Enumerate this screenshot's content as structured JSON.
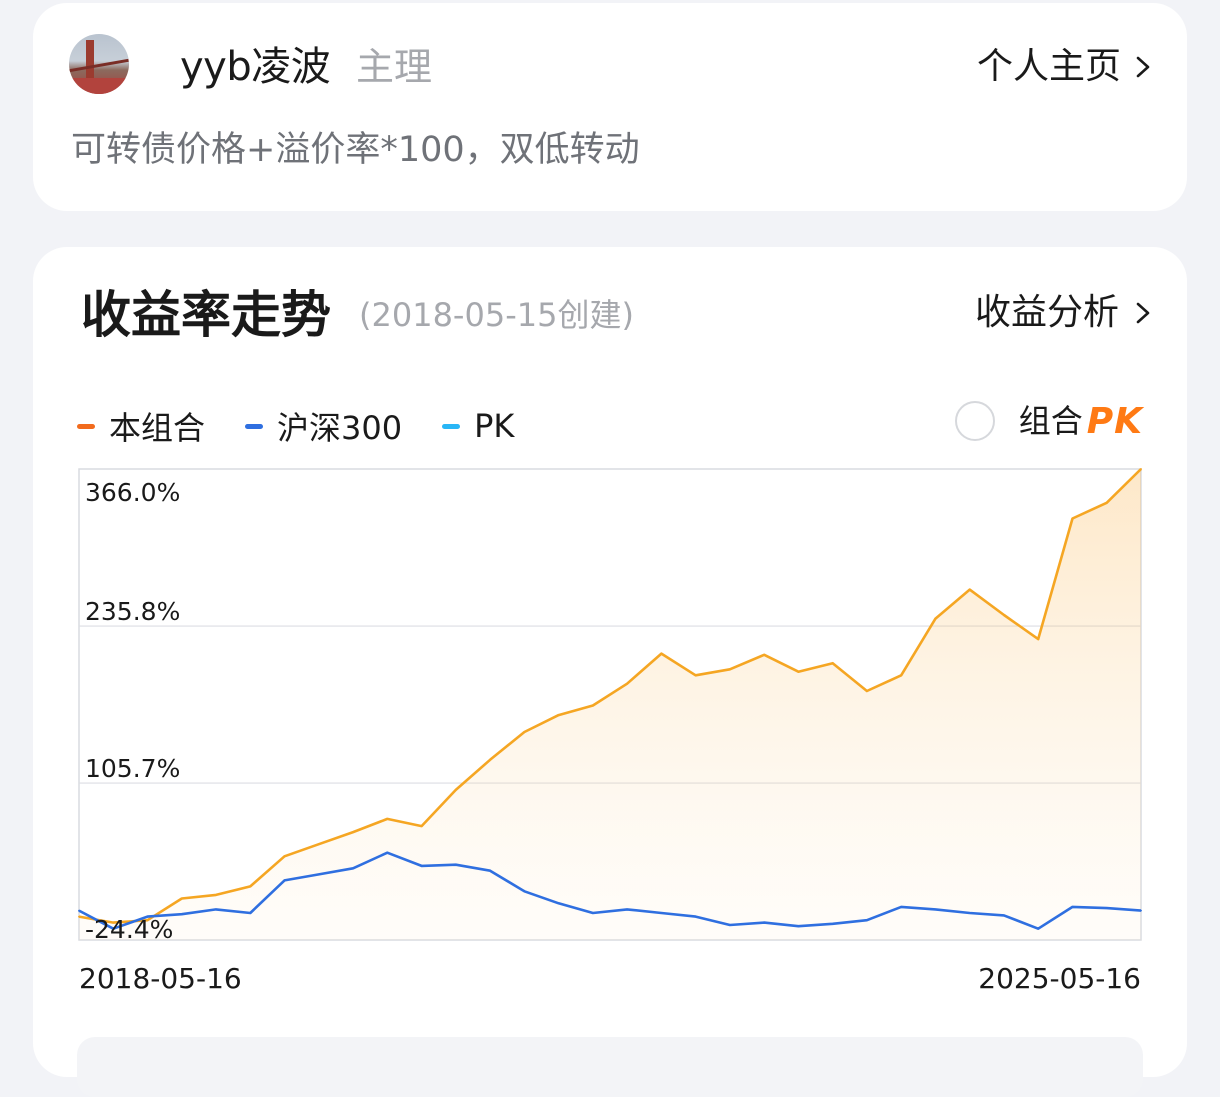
{
  "profile": {
    "username": "yyb凌波",
    "role": "主理",
    "link_label": "个人主页",
    "description": "可转债价格+溢价率*100，双低转动"
  },
  "performance": {
    "title": "收益率走势",
    "subtitle": "(2018-05-15创建)",
    "link_label": "收益分析",
    "legend": [
      {
        "label": "本组合",
        "color": "#f26b1d"
      },
      {
        "label": "沪深300",
        "color": "#2f6fe0"
      },
      {
        "label": "PK",
        "color": "#29b6f6"
      }
    ],
    "pk_toggle": {
      "label": "组合",
      "brand": "PK",
      "checked": false
    }
  },
  "chart_data": {
    "type": "line",
    "y_tick_labels": [
      "366.0%",
      "235.8%",
      "105.7%",
      "-24.4%"
    ],
    "yticks": [
      366.0,
      235.8,
      105.7,
      -24.4
    ],
    "ylim": [
      -24.4,
      366.0
    ],
    "x_tick_labels": [
      "2018-05-16",
      "2025-05-16"
    ],
    "x": [
      "2018-05",
      "2018-08",
      "2018-11",
      "2019-02",
      "2019-05",
      "2019-08",
      "2019-11",
      "2020-02",
      "2020-05",
      "2020-08",
      "2020-11",
      "2021-02",
      "2021-05",
      "2021-08",
      "2021-11",
      "2022-02",
      "2022-05",
      "2022-08",
      "2022-11",
      "2023-02",
      "2023-05",
      "2023-08",
      "2023-11",
      "2024-02",
      "2024-03",
      "2024-05",
      "2024-08",
      "2024-09",
      "2024-10",
      "2024-11",
      "2025-02",
      "2025-05"
    ],
    "series": [
      {
        "name": "本组合",
        "color": "#f5a623",
        "fill": true,
        "values": [
          -5,
          -10,
          -8,
          10,
          13,
          20,
          45,
          55,
          65,
          76,
          70,
          100,
          125,
          148,
          162,
          170,
          188,
          213,
          195,
          200,
          212,
          198,
          205,
          182,
          195,
          242,
          266,
          245,
          225,
          325,
          338,
          366
        ]
      },
      {
        "name": "沪深300",
        "color": "#2f6fe0",
        "fill": false,
        "values": [
          0,
          -15,
          -5,
          -3,
          1,
          -2,
          25,
          30,
          35,
          48,
          37,
          38,
          33,
          16,
          6,
          -2,
          1,
          -2,
          -5,
          -12,
          -10,
          -13,
          -11,
          -8,
          3,
          1,
          -2,
          -4,
          -15,
          3,
          2,
          0
        ]
      }
    ],
    "grid": true,
    "fill_under_first_series": true
  },
  "bottom_panel": {}
}
